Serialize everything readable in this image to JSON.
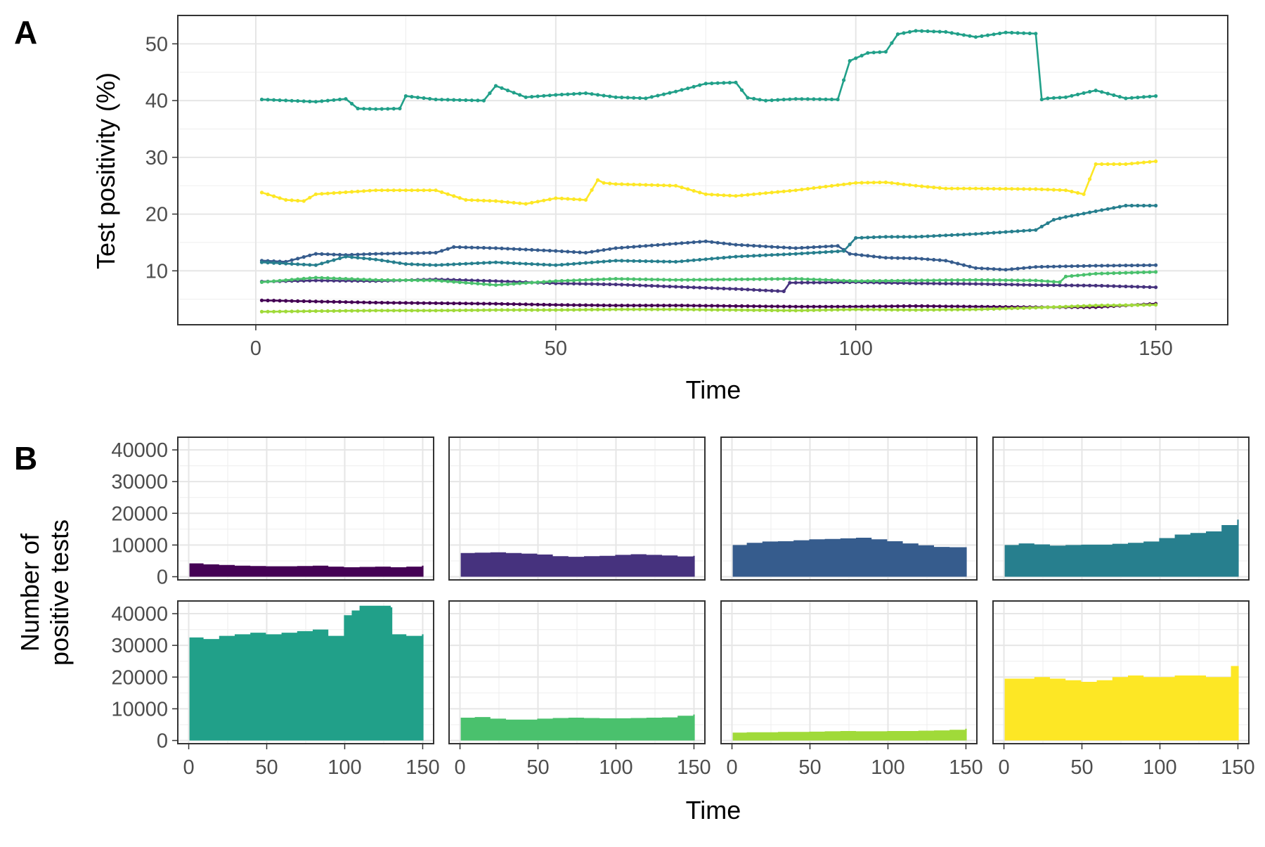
{
  "panel_a": {
    "label": "A",
    "chart_data": {
      "type": "line",
      "xlabel": "Time",
      "ylabel": "Test positivity (%)",
      "xlim": [
        -13,
        162
      ],
      "ylim": [
        0.5,
        55
      ],
      "xticks": [
        0,
        50,
        100,
        150
      ],
      "yticks": [
        10,
        20,
        30,
        40,
        50
      ],
      "grid": true,
      "legend": "none",
      "markers": true,
      "series": [
        {
          "color": "#440154",
          "x": [
            1,
            10,
            20,
            30,
            40,
            50,
            60,
            70,
            80,
            90,
            100,
            110,
            120,
            130,
            140,
            150
          ],
          "y": [
            4.8,
            4.6,
            4.4,
            4.3,
            4.2,
            4.0,
            3.9,
            3.9,
            3.8,
            3.7,
            3.7,
            3.8,
            3.7,
            3.6,
            3.6,
            4.2
          ]
        },
        {
          "color": "#46327E",
          "x": [
            1,
            10,
            20,
            30,
            40,
            50,
            60,
            70,
            80,
            88,
            89,
            100,
            110,
            120,
            130,
            140,
            150
          ],
          "y": [
            8.1,
            8.3,
            8.2,
            8.5,
            8.2,
            7.8,
            7.6,
            7.2,
            6.8,
            6.4,
            7.9,
            8.0,
            7.8,
            7.7,
            7.5,
            7.4,
            7.1
          ]
        },
        {
          "color": "#365C8D",
          "x": [
            1,
            5,
            10,
            15,
            20,
            30,
            33,
            40,
            50,
            55,
            60,
            70,
            75,
            80,
            90,
            97,
            99,
            105,
            110,
            115,
            120,
            125,
            130,
            140,
            150
          ],
          "y": [
            11.8,
            11.6,
            13.0,
            12.8,
            13.0,
            13.2,
            14.2,
            14.0,
            13.5,
            13.2,
            14.0,
            14.8,
            15.2,
            14.6,
            14.0,
            14.4,
            13.0,
            12.3,
            12.2,
            11.8,
            10.5,
            10.2,
            10.7,
            10.9,
            11.0
          ]
        },
        {
          "color": "#277F8E",
          "x": [
            1,
            10,
            15,
            20,
            25,
            30,
            40,
            50,
            60,
            70,
            80,
            90,
            98,
            100,
            105,
            110,
            120,
            130,
            133,
            135,
            140,
            145,
            150
          ],
          "y": [
            11.5,
            11.0,
            12.5,
            12.0,
            11.2,
            11.0,
            11.5,
            11.0,
            11.8,
            11.6,
            12.5,
            13.0,
            13.5,
            15.8,
            16.0,
            16.0,
            16.5,
            17.2,
            19.0,
            19.5,
            20.5,
            21.5,
            21.5
          ]
        },
        {
          "color": "#21A089",
          "x": [
            1,
            10,
            15,
            17,
            20,
            24,
            25,
            30,
            38,
            40,
            45,
            50,
            55,
            60,
            65,
            70,
            75,
            80,
            82,
            85,
            90,
            97,
            99,
            102,
            105,
            107,
            110,
            115,
            120,
            125,
            130,
            131,
            132,
            135,
            140,
            145,
            150
          ],
          "y": [
            40.2,
            39.8,
            40.3,
            38.6,
            38.5,
            38.6,
            40.8,
            40.2,
            40.0,
            42.6,
            40.6,
            41.0,
            41.3,
            40.6,
            40.4,
            41.6,
            43.0,
            43.2,
            40.5,
            40.0,
            40.3,
            40.2,
            47.0,
            48.4,
            48.6,
            51.7,
            52.3,
            52.1,
            51.2,
            52.0,
            51.8,
            40.2,
            40.4,
            40.6,
            41.8,
            40.4,
            40.8
          ]
        },
        {
          "color": "#4AC16D",
          "x": [
            1,
            10,
            20,
            30,
            40,
            50,
            60,
            70,
            80,
            90,
            100,
            110,
            120,
            130,
            134,
            135,
            140,
            150
          ],
          "y": [
            8.0,
            8.8,
            8.4,
            8.3,
            7.5,
            8.2,
            8.6,
            8.4,
            8.5,
            8.6,
            8.2,
            8.3,
            8.4,
            8.3,
            8.0,
            9.0,
            9.5,
            9.8
          ]
        },
        {
          "color": "#A0DA39",
          "x": [
            1,
            10,
            20,
            30,
            40,
            50,
            60,
            70,
            80,
            90,
            100,
            110,
            120,
            130,
            140,
            150
          ],
          "y": [
            2.8,
            2.9,
            3.0,
            3.0,
            3.1,
            3.1,
            3.2,
            3.2,
            3.1,
            3.0,
            3.2,
            3.1,
            3.2,
            3.5,
            3.9,
            4.0
          ]
        },
        {
          "color": "#FDE725",
          "x": [
            1,
            5,
            8,
            10,
            20,
            30,
            35,
            40,
            45,
            50,
            55,
            57,
            58,
            60,
            70,
            75,
            80,
            90,
            100,
            105,
            110,
            115,
            120,
            130,
            135,
            138,
            140,
            145,
            150
          ],
          "y": [
            23.8,
            22.5,
            22.3,
            23.5,
            24.2,
            24.2,
            22.5,
            22.3,
            21.8,
            22.8,
            22.5,
            26.0,
            25.5,
            25.3,
            25.0,
            23.5,
            23.2,
            24.2,
            25.5,
            25.6,
            25.0,
            24.5,
            24.5,
            24.4,
            24.2,
            23.5,
            28.8,
            28.8,
            29.3
          ]
        }
      ]
    }
  },
  "panel_b": {
    "label": "B",
    "chart_data": {
      "type": "area",
      "layout": "facets 2 rows x 4 columns",
      "xlabel": "Time",
      "ylabel_line1": "Number of",
      "ylabel_line2": "positive tests",
      "xlim": [
        -7,
        157
      ],
      "ylim": [
        -1000,
        44000
      ],
      "xticks": [
        0,
        50,
        100,
        150
      ],
      "yticks": [
        0,
        10000,
        20000,
        30000,
        40000
      ],
      "ytick_labels": [
        "0",
        "10000",
        "20000",
        "30000",
        "40000"
      ],
      "grid": true,
      "legend": "none",
      "facets": [
        {
          "color": "#440154",
          "x": [
            1,
            10,
            20,
            30,
            40,
            50,
            60,
            70,
            80,
            90,
            100,
            110,
            120,
            130,
            140,
            150
          ],
          "y": [
            4200,
            3900,
            3700,
            3500,
            3400,
            3300,
            3300,
            3400,
            3500,
            3200,
            3000,
            3100,
            3200,
            3000,
            3200,
            3500
          ]
        },
        {
          "color": "#46327E",
          "x": [
            1,
            10,
            20,
            30,
            40,
            50,
            60,
            70,
            80,
            90,
            100,
            110,
            120,
            130,
            140,
            150
          ],
          "y": [
            7500,
            7600,
            7700,
            7500,
            7300,
            7000,
            6500,
            6300,
            6500,
            6600,
            6900,
            7100,
            6900,
            6700,
            6400,
            6600
          ]
        },
        {
          "color": "#365C8D",
          "x": [
            1,
            10,
            20,
            30,
            40,
            50,
            60,
            70,
            80,
            90,
            100,
            110,
            120,
            130,
            140,
            150
          ],
          "y": [
            10000,
            10700,
            11100,
            11200,
            11500,
            11800,
            11900,
            12100,
            12300,
            11800,
            11200,
            10500,
            9900,
            9400,
            9300,
            9300
          ]
        },
        {
          "color": "#277F8E",
          "x": [
            1,
            10,
            20,
            30,
            40,
            50,
            60,
            70,
            80,
            90,
            100,
            110,
            120,
            130,
            140,
            150
          ],
          "y": [
            10000,
            10500,
            10200,
            9800,
            10000,
            10100,
            10100,
            10400,
            10700,
            11100,
            12200,
            13300,
            13800,
            14300,
            16300,
            18000
          ]
        },
        {
          "color": "#21A089",
          "x": [
            1,
            10,
            20,
            30,
            40,
            50,
            60,
            70,
            80,
            90,
            99,
            100,
            105,
            110,
            120,
            130,
            131,
            140,
            150
          ],
          "y": [
            32500,
            32000,
            33000,
            33500,
            34000,
            33500,
            34000,
            34500,
            35000,
            33000,
            33000,
            39500,
            41000,
            42500,
            42500,
            42000,
            33500,
            33000,
            33500
          ]
        },
        {
          "color": "#4AC16D",
          "x": [
            1,
            10,
            20,
            30,
            40,
            50,
            60,
            70,
            80,
            90,
            100,
            110,
            120,
            130,
            140,
            150
          ],
          "y": [
            7200,
            7400,
            6900,
            6600,
            6600,
            6900,
            7100,
            7200,
            7100,
            7000,
            7000,
            7100,
            7200,
            7300,
            7800,
            8200
          ]
        },
        {
          "color": "#A0DA39",
          "x": [
            1,
            10,
            20,
            30,
            40,
            50,
            60,
            70,
            80,
            90,
            100,
            110,
            120,
            130,
            140,
            150
          ],
          "y": [
            2500,
            2600,
            2600,
            2700,
            2700,
            2800,
            2900,
            3000,
            2900,
            2900,
            3000,
            3000,
            3100,
            3200,
            3400,
            3700
          ]
        },
        {
          "color": "#FDE725",
          "x": [
            1,
            10,
            20,
            30,
            40,
            50,
            60,
            70,
            80,
            90,
            100,
            110,
            120,
            130,
            140,
            146,
            150
          ],
          "y": [
            19500,
            19500,
            20000,
            19500,
            19000,
            18500,
            19000,
            20000,
            20500,
            20000,
            20000,
            20500,
            20500,
            20000,
            20000,
            23500,
            23500
          ]
        }
      ]
    }
  }
}
